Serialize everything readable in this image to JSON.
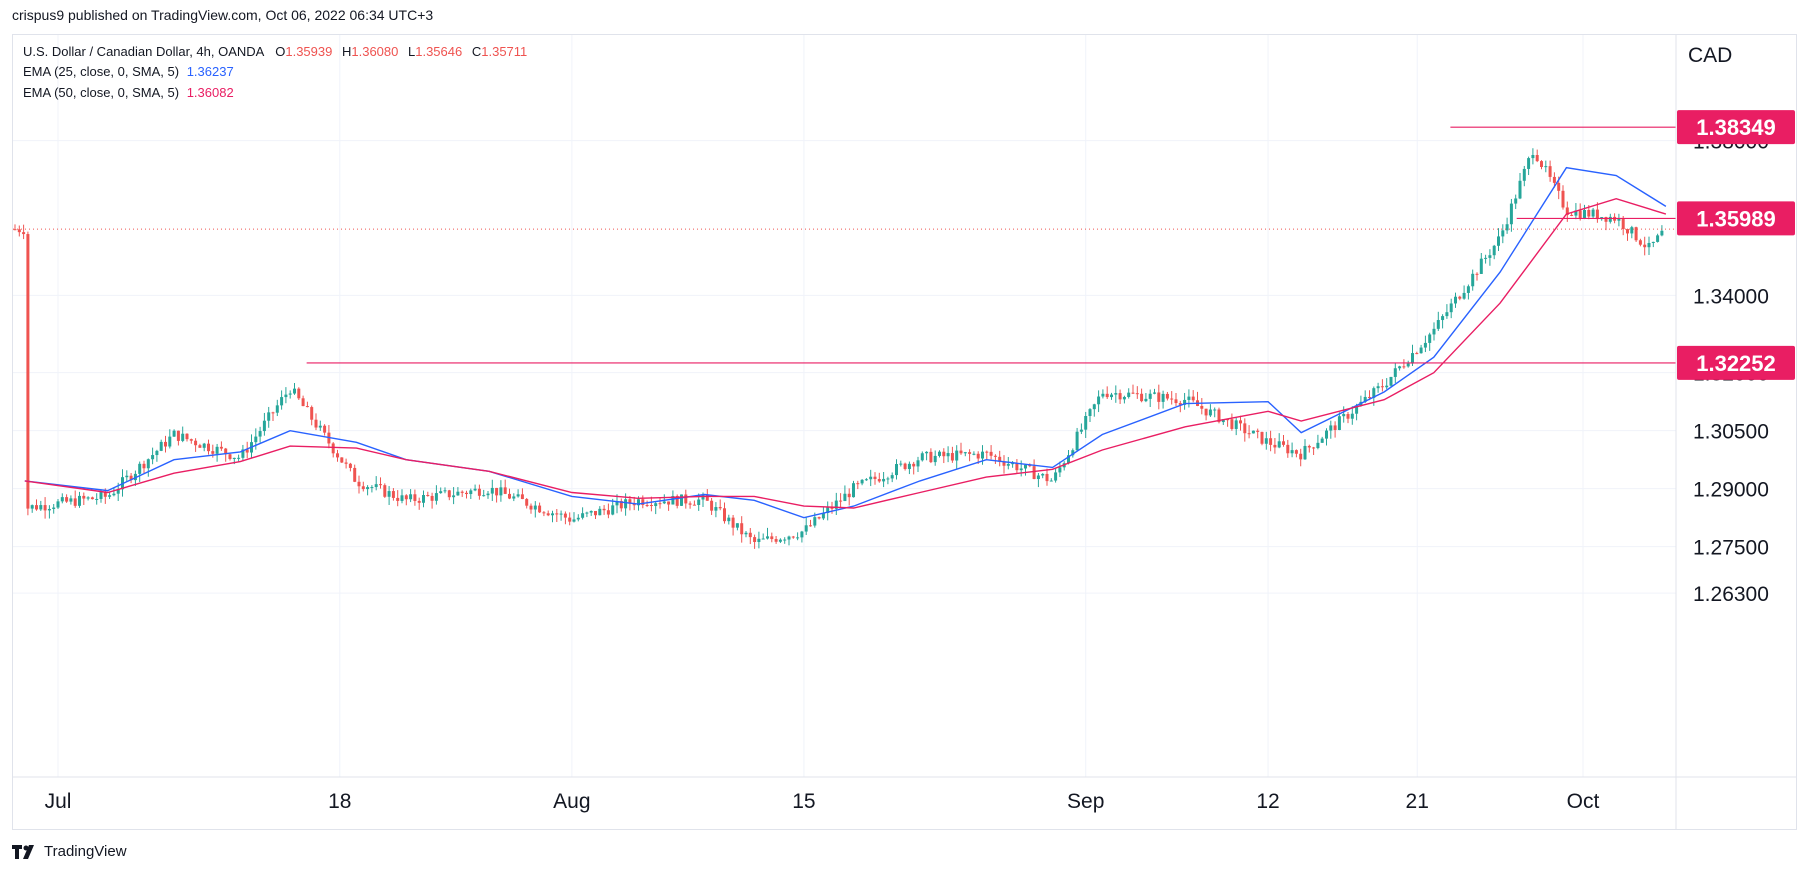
{
  "header": {
    "published": "crispus9 published on TradingView.com, Oct 06, 2022 06:34 UTC+3"
  },
  "legend": {
    "symbol": "U.S. Dollar / Canadian Dollar, 4h, OANDA",
    "open_label": "O",
    "open": "1.35939",
    "high_label": "H",
    "high": "1.36080",
    "low_label": "L",
    "low": "1.35646",
    "close_label": "C",
    "close": "1.35711",
    "ema25_label": "EMA (25, close, 0, SMA, 5)",
    "ema25_value": "1.36237",
    "ema50_label": "EMA (50, close, 0, SMA, 5)",
    "ema50_value": "1.36082"
  },
  "footer": {
    "brand": "TradingView"
  },
  "colors": {
    "up": "#26a69a",
    "down": "#ef5350",
    "ema25": "#2962ff",
    "ema50": "#e91e63",
    "level": "#e91e63",
    "grid": "#f0f3fa"
  },
  "chart_data": {
    "type": "line",
    "title": "U.S. Dollar / Canadian Dollar, 4h, OANDA",
    "currency_label": "CAD",
    "y_axis_ticks": [
      "1.38000",
      "1.34000",
      "1.32000",
      "1.30500",
      "1.29000",
      "1.27500",
      "1.26300"
    ],
    "x_axis_ticks": [
      "Jul",
      "18",
      "Aug",
      "15",
      "Sep",
      "12",
      "21",
      "Oct"
    ],
    "ylim": [
      1.263,
      1.39
    ],
    "horizontal_levels": [
      {
        "value": 1.38349,
        "label": "1.38349"
      },
      {
        "value": 1.35989,
        "label": "1.35989"
      },
      {
        "value": 1.32252,
        "label": "1.32252"
      }
    ],
    "current_price": 1.35711,
    "series": [
      {
        "name": "EMA (25, close, 0, SMA, 5)",
        "x": [
          "2022-06-29",
          "2022-07-04",
          "2022-07-08",
          "2022-07-12",
          "2022-07-15",
          "2022-07-19",
          "2022-07-22",
          "2022-07-27",
          "2022-08-01",
          "2022-08-05",
          "2022-08-09",
          "2022-08-12",
          "2022-08-15",
          "2022-08-18",
          "2022-08-22",
          "2022-08-26",
          "2022-08-30",
          "2022-09-02",
          "2022-09-07",
          "2022-09-12",
          "2022-09-14",
          "2022-09-19",
          "2022-09-22",
          "2022-09-26",
          "2022-09-30",
          "2022-10-03",
          "2022-10-06"
        ],
        "values": [
          1.292,
          1.2895,
          1.2975,
          1.2995,
          1.305,
          1.302,
          1.2975,
          1.2945,
          1.288,
          1.286,
          1.2885,
          1.287,
          1.2825,
          1.2855,
          1.292,
          1.2975,
          1.2955,
          1.304,
          1.312,
          1.3125,
          1.3045,
          1.315,
          1.324,
          1.346,
          1.373,
          1.371,
          1.363
        ]
      },
      {
        "name": "EMA (50, close, 0, SMA, 5)",
        "x": [
          "2022-06-29",
          "2022-07-04",
          "2022-07-08",
          "2022-07-12",
          "2022-07-15",
          "2022-07-19",
          "2022-07-22",
          "2022-07-27",
          "2022-08-01",
          "2022-08-05",
          "2022-08-09",
          "2022-08-12",
          "2022-08-15",
          "2022-08-18",
          "2022-08-22",
          "2022-08-26",
          "2022-08-30",
          "2022-09-02",
          "2022-09-07",
          "2022-09-12",
          "2022-09-14",
          "2022-09-19",
          "2022-09-22",
          "2022-09-26",
          "2022-09-30",
          "2022-10-03",
          "2022-10-06"
        ],
        "values": [
          1.292,
          1.289,
          1.294,
          1.297,
          1.301,
          1.3005,
          1.2975,
          1.2945,
          1.289,
          1.2875,
          1.288,
          1.288,
          1.2855,
          1.285,
          1.289,
          1.293,
          1.295,
          1.3,
          1.306,
          1.31,
          1.3075,
          1.313,
          1.32,
          1.338,
          1.361,
          1.365,
          1.361
        ]
      }
    ],
    "candles_summary": {
      "x": [
        "2022-06-29",
        "2022-07-04",
        "2022-07-08",
        "2022-07-12",
        "2022-07-15",
        "2022-07-19",
        "2022-07-22",
        "2022-07-27",
        "2022-08-01",
        "2022-08-05",
        "2022-08-09",
        "2022-08-12",
        "2022-08-15",
        "2022-08-18",
        "2022-08-22",
        "2022-08-26",
        "2022-08-30",
        "2022-09-02",
        "2022-09-07",
        "2022-09-12",
        "2022-09-14",
        "2022-09-19",
        "2022-09-22",
        "2022-09-26",
        "2022-09-28",
        "2022-09-30",
        "2022-10-03",
        "2022-10-05",
        "2022-10-06"
      ],
      "close": [
        1.285,
        1.288,
        1.304,
        1.298,
        1.316,
        1.292,
        1.287,
        1.29,
        1.282,
        1.287,
        1.287,
        1.276,
        1.279,
        1.29,
        1.298,
        1.299,
        1.292,
        1.315,
        1.313,
        1.302,
        1.299,
        1.317,
        1.331,
        1.355,
        1.378,
        1.362,
        1.36,
        1.352,
        1.35711
      ]
    }
  }
}
